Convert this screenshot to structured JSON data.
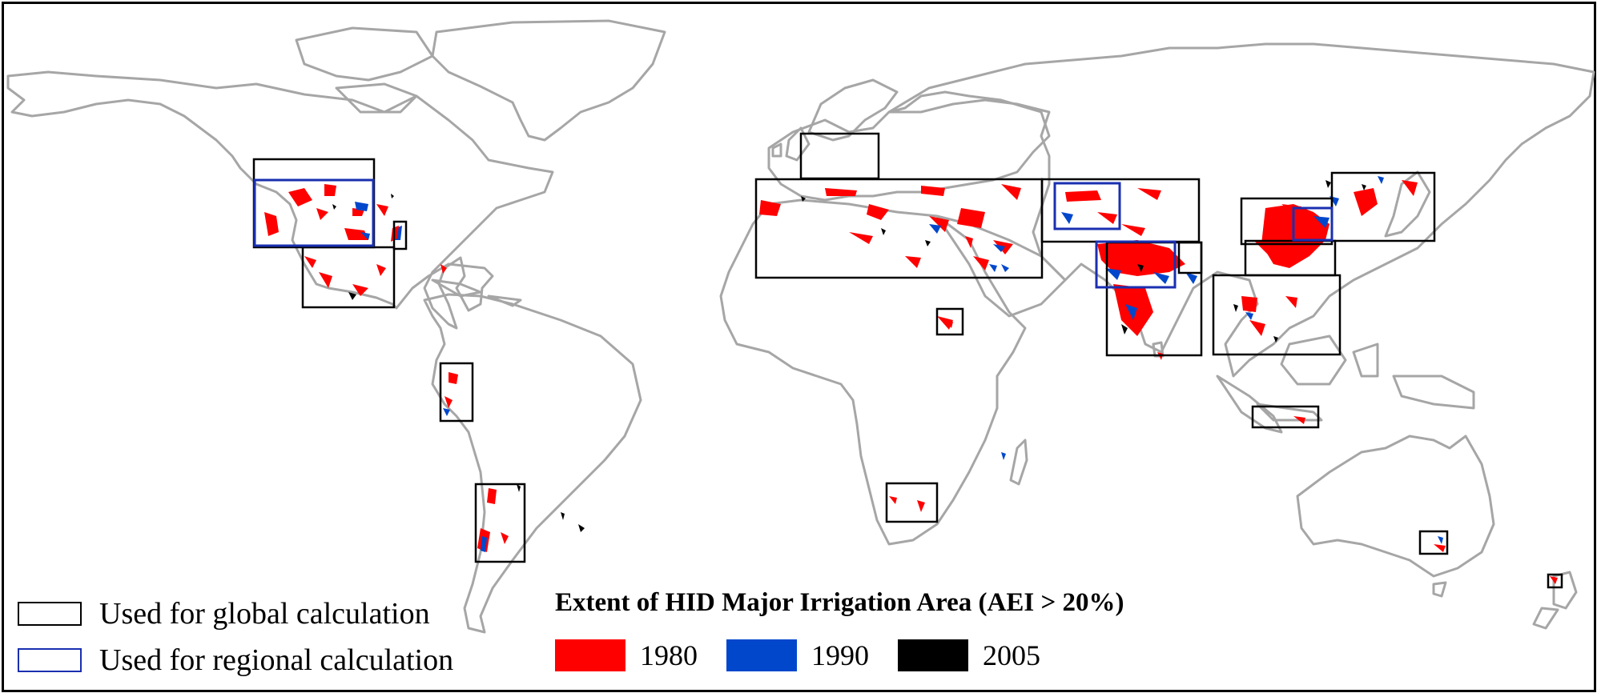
{
  "map": {
    "legend": {
      "global_label": "Used for global calculation",
      "regional_label": "Used for regional calculation"
    },
    "extent": {
      "title": "Extent of HID Major Irrigation Area (AEI > 20%)",
      "years": [
        {
          "label": "1980",
          "color": "#ff0000"
        },
        {
          "label": "1990",
          "color": "#0047cc"
        },
        {
          "label": "2005",
          "color": "#000000"
        }
      ]
    },
    "colors": {
      "coastline": "#a6a6a6",
      "global_box": "#000000",
      "regional_box": "#1a2fb0"
    }
  }
}
